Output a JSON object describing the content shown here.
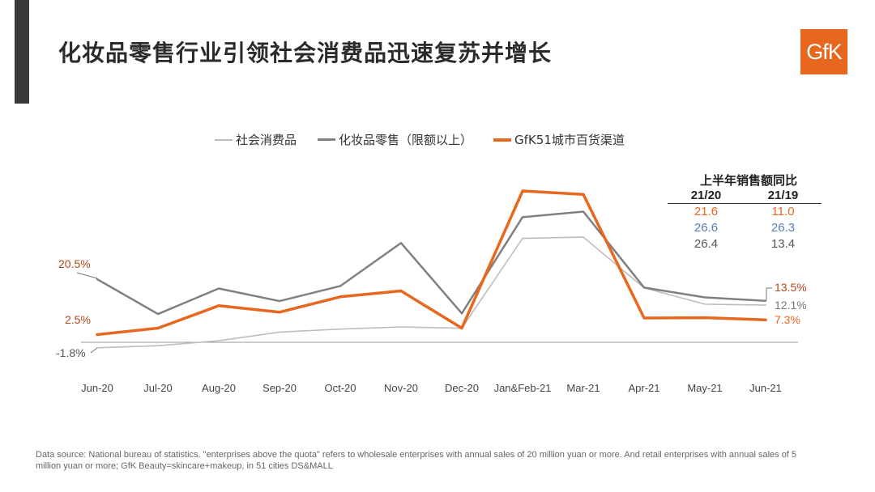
{
  "slide": {
    "title": "化妆品零售行业引领社会消费品迅速复苏并增长",
    "logo_text": "GfK",
    "footnote": "Data source: National bureau of statistics. \"enterprises above the quota\" refers to wholesale enterprises with annual sales of 20 million yuan or more. And retail enterprises with annual sales of 5 million yuan or more; GfK Beauty=skincare+makeup, in 51 cities DS&MALL"
  },
  "colors": {
    "gray_light": "#bdbdbd",
    "gray_dark": "#808080",
    "orange": "#e8671f",
    "blue": "#5a7db8",
    "dark_red": "#b5471b"
  },
  "summary_table": {
    "title": "上半年销售额同比",
    "headers": [
      "21/20",
      "21/19"
    ],
    "rows": [
      {
        "values": [
          "21.6",
          "11.0"
        ],
        "color": "#e8671f"
      },
      {
        "values": [
          "26.6",
          "26.3"
        ],
        "color": "#5a7db8"
      },
      {
        "values": [
          "26.4",
          "13.4"
        ],
        "color": "#555555"
      }
    ]
  },
  "chart_data": {
    "type": "line",
    "categories": [
      "Jun-20",
      "Jul-20",
      "Aug-20",
      "Sep-20",
      "Oct-20",
      "Nov-20",
      "Dec-20",
      "Jan&Feb-21",
      "Mar-21",
      "Apr-21",
      "May-21",
      "Jun-21"
    ],
    "series": [
      {
        "name": "社会消费品",
        "color": "#bdbdbd",
        "values": [
          -1.8,
          -1.1,
          0.5,
          3.3,
          4.3,
          5.0,
          4.6,
          33.8,
          34.2,
          17.7,
          12.4,
          12.1
        ]
      },
      {
        "name": "化妆品零售（限额以上）",
        "color": "#808080",
        "values": [
          20.5,
          9.2,
          17.5,
          13.4,
          18.3,
          32.3,
          9.4,
          40.7,
          42.5,
          17.8,
          14.6,
          13.5
        ]
      },
      {
        "name": "GfK51城市百货渠道",
        "color": "#e8671f",
        "values": [
          2.5,
          4.6,
          11.9,
          9.8,
          14.8,
          16.7,
          4.6,
          49.2,
          48.1,
          7.9,
          8.0,
          7.3
        ]
      }
    ],
    "annotations": [
      {
        "text": "20.5%",
        "series": 1,
        "index": 0,
        "color": "#b5471b"
      },
      {
        "text": "2.5%",
        "series": 2,
        "index": 0,
        "color": "#b5471b"
      },
      {
        "text": "-1.8%",
        "series": 0,
        "index": 0,
        "color": "#555555"
      },
      {
        "text": "13.5%",
        "series": 1,
        "index": 11,
        "color": "#b5471b"
      },
      {
        "text": "12.1%",
        "series": 0,
        "index": 11,
        "color": "#777777"
      },
      {
        "text": "7.3%",
        "series": 2,
        "index": 11,
        "color": "#e8671f"
      }
    ],
    "title": "",
    "xlabel": "",
    "ylabel": "",
    "ylim": [
      -5,
      55
    ],
    "grid": false,
    "legend_position": "top"
  }
}
